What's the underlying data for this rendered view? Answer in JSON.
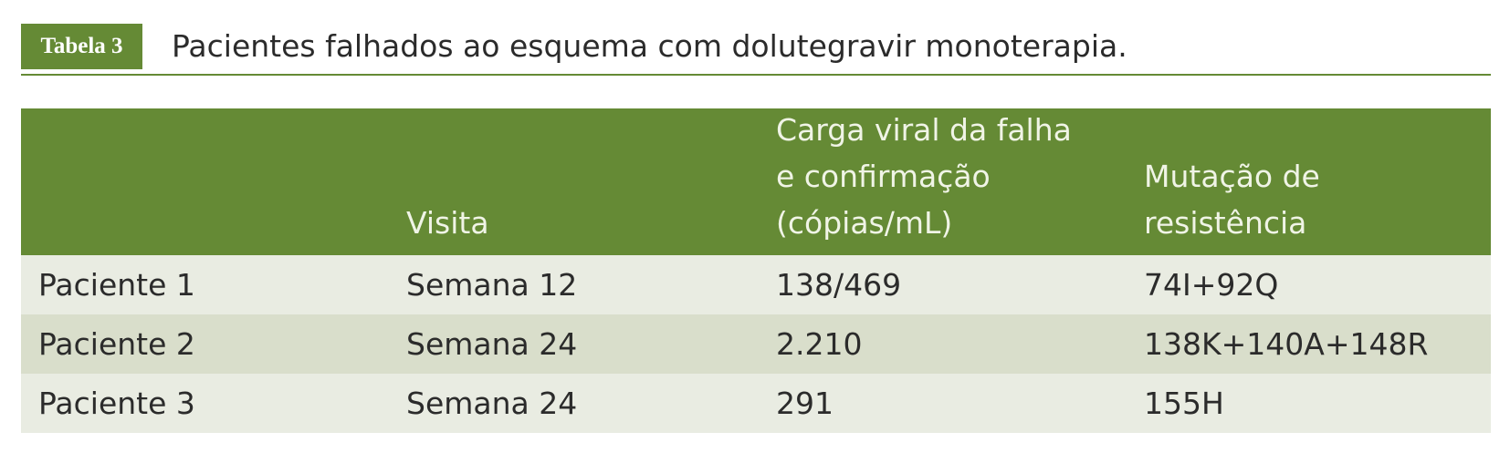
{
  "label": "Tabela 3",
  "title": "Pacientes falhados ao esquema com dolutegravir monoterapia.",
  "table": {
    "header": [
      [
        "Visita"
      ],
      [
        "Carga viral da falha",
        "e confirmação",
        "(cópias/mL)"
      ],
      [
        "Mutação de",
        "resistência"
      ]
    ],
    "rows": [
      [
        "Paciente 1",
        "Semana 12",
        "138/469",
        "74I+92Q"
      ],
      [
        "Paciente 2",
        "Semana 24",
        "2.210",
        "138K+140A+148R"
      ],
      [
        "Paciente 3",
        "Semana 24",
        "291",
        "155H"
      ]
    ]
  }
}
